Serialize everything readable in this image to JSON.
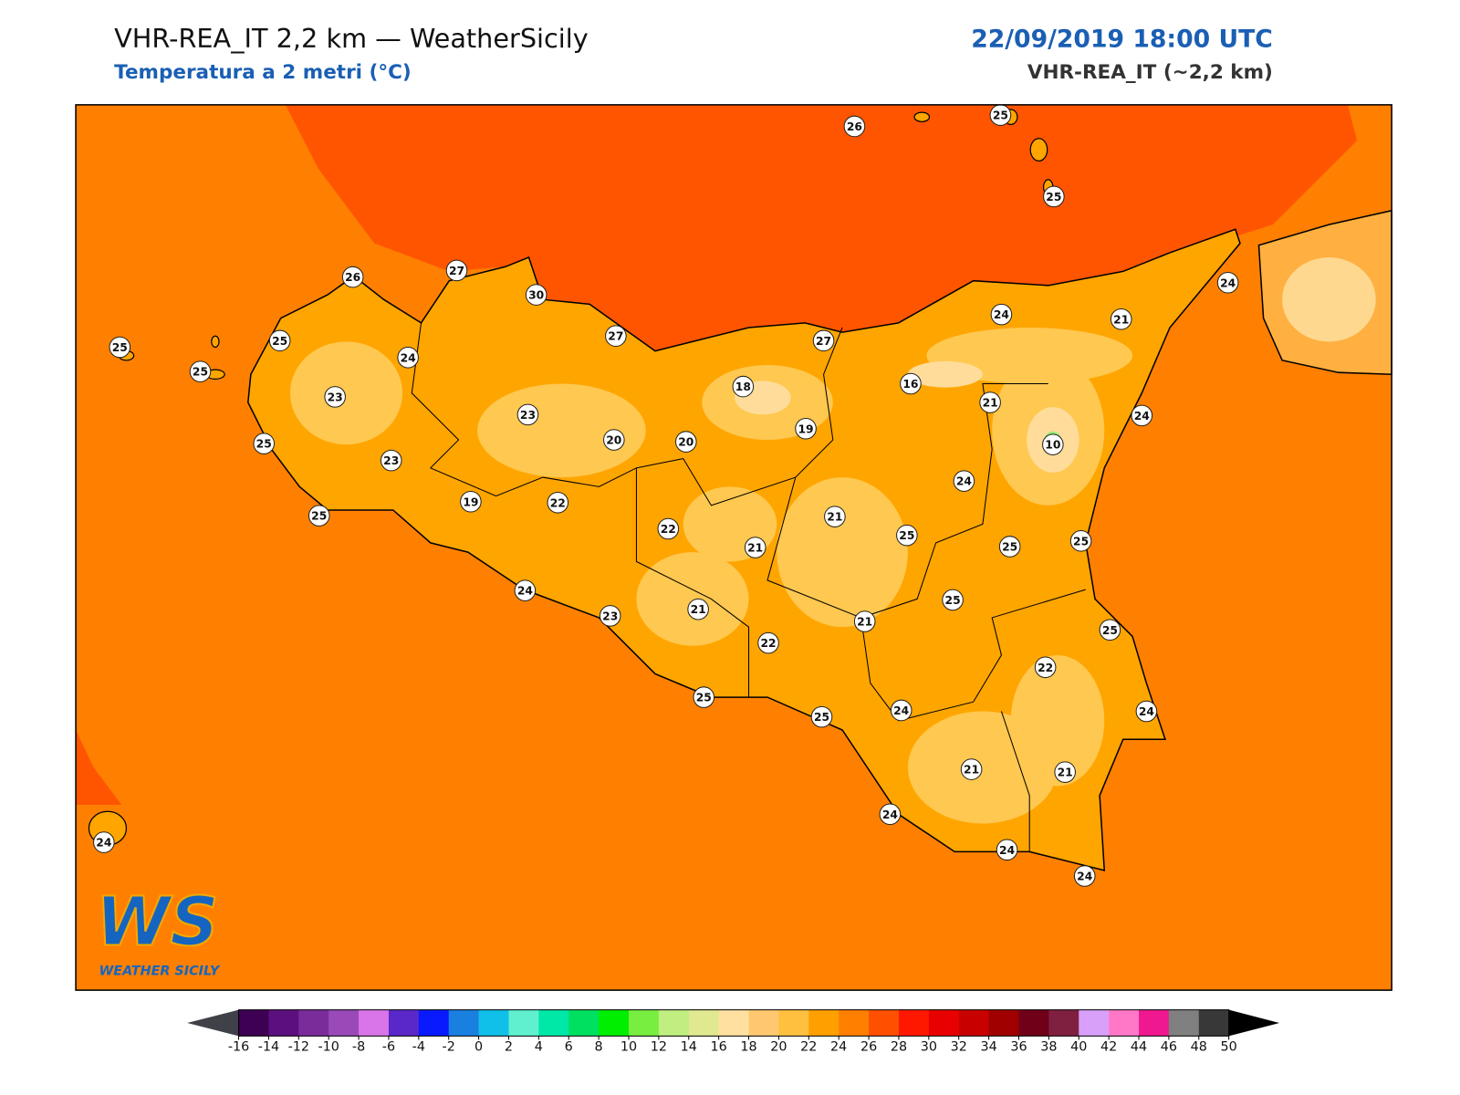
{
  "header": {
    "title": "VHR-REA_IT 2,2 km — WeatherSicily",
    "subtitle": "Temperatura a 2 metri (°C)",
    "datetime": "22/09/2019 18:00 UTC",
    "model": "VHR-REA_IT (~2,2 km)"
  },
  "stations": [
    26,
    25,
    25,
    26,
    27,
    30,
    25,
    25,
    25,
    24,
    27,
    27,
    24,
    21,
    24,
    23,
    23,
    20,
    20,
    18,
    19,
    16,
    21,
    10,
    24,
    25,
    23,
    25,
    19,
    22,
    22,
    21,
    21,
    24,
    25,
    25,
    25,
    24,
    23,
    21,
    25,
    21,
    22,
    25,
    22,
    25,
    25,
    24,
    24,
    21,
    21,
    24,
    24,
    24,
    24
  ],
  "colorbar": {
    "ticks": [
      -16,
      -14,
      -12,
      -10,
      -8,
      -6,
      -4,
      -2,
      0,
      2,
      4,
      6,
      8,
      10,
      12,
      14,
      16,
      18,
      20,
      22,
      24,
      26,
      28,
      30,
      32,
      34,
      36,
      38,
      40,
      42,
      44,
      46,
      48,
      50
    ],
    "colors": [
      "#3d0052",
      "#5c1080",
      "#7a2d9a",
      "#9a4ab8",
      "#d975e8",
      "#5a28c8",
      "#0a1aff",
      "#1a80e0",
      "#10c0e8",
      "#60f0d0",
      "#00e8a8",
      "#00e060",
      "#00ee00",
      "#78ee40",
      "#c0ee80",
      "#e0e890",
      "#ffe0a0",
      "#ffc870",
      "#ffc040",
      "#ffa000",
      "#ff8000",
      "#ff5000",
      "#ff1800",
      "#e80000",
      "#c80000",
      "#a00000",
      "#700018",
      "#802040",
      "#d8a0f8",
      "#ff78c8",
      "#f01890",
      "#808080",
      "#383838"
    ],
    "under": "#404048",
    "over": "#000000"
  },
  "logo": {
    "mark": "WS",
    "name": "WEATHER SICILY"
  }
}
